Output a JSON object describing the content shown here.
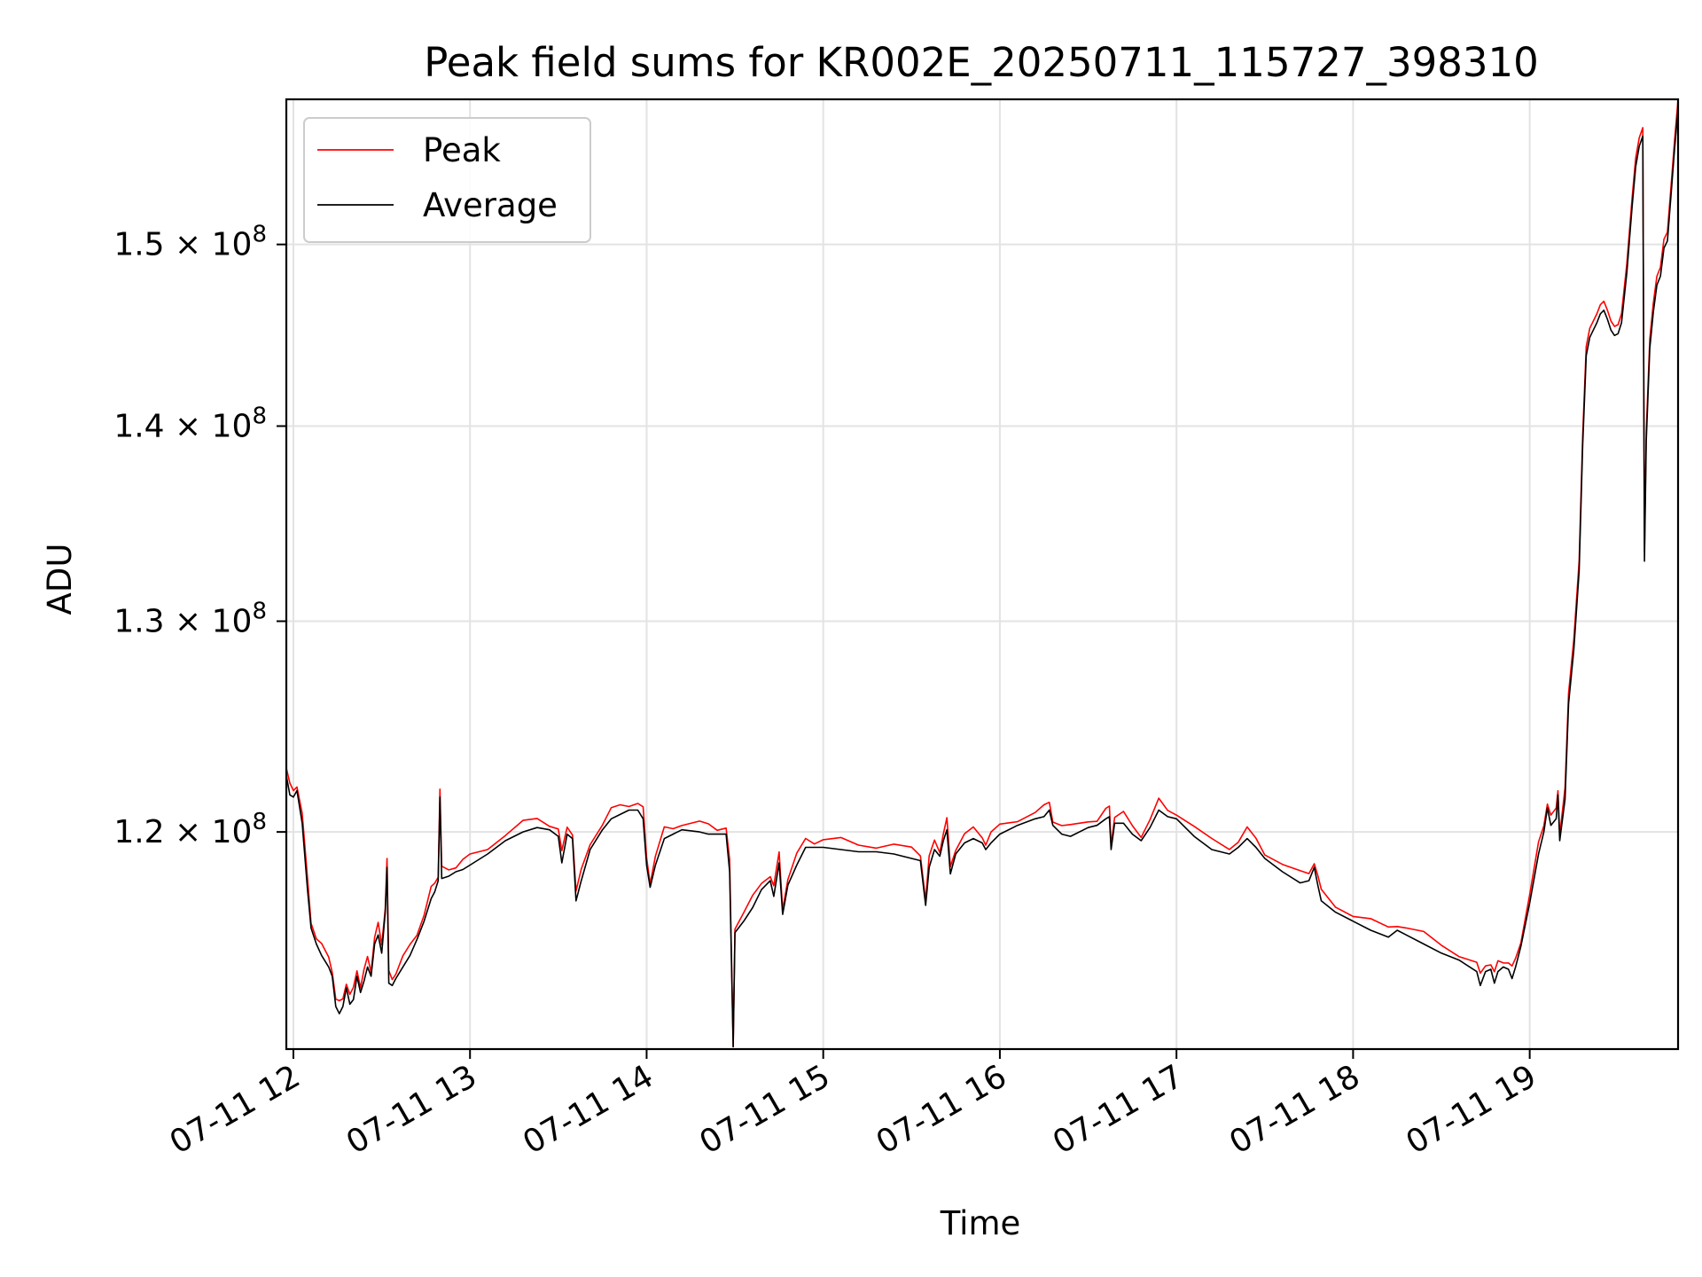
{
  "chart_data": {
    "type": "line",
    "title": "Peak field sums for KR002E_20250711_115727_398310",
    "xlabel": "Time",
    "ylabel": "ADU",
    "x_unit": "hours since 2025-07-11 00:00",
    "xlim": [
      11.96,
      19.84
    ],
    "ylim": [
      110.5,
      158.5
    ],
    "y_scale": "log",
    "y_value_unit": "1e6 ADU",
    "grid": true,
    "legend": {
      "position": "upper-left"
    },
    "x_ticks": [
      {
        "value": 12,
        "label": "07-11 12"
      },
      {
        "value": 13,
        "label": "07-11 13"
      },
      {
        "value": 14,
        "label": "07-11 14"
      },
      {
        "value": 15,
        "label": "07-11 15"
      },
      {
        "value": 16,
        "label": "07-11 16"
      },
      {
        "value": 17,
        "label": "07-11 17"
      },
      {
        "value": 18,
        "label": "07-11 18"
      },
      {
        "value": 19,
        "label": "07-11 19"
      }
    ],
    "y_ticks": [
      {
        "value": 120,
        "mantissa": "1.2",
        "base": "10",
        "exp": "8"
      },
      {
        "value": 130,
        "mantissa": "1.3",
        "base": "10",
        "exp": "8"
      },
      {
        "value": 140,
        "mantissa": "1.4",
        "base": "10",
        "exp": "8"
      },
      {
        "value": 150,
        "mantissa": "1.5",
        "base": "10",
        "exp": "8"
      }
    ],
    "series": [
      {
        "name": "Peak",
        "color": "#ff0000",
        "width": 1.6
      },
      {
        "name": "Average",
        "color": "#000000",
        "width": 1.6
      }
    ],
    "average": [
      [
        11.96,
        122.6
      ],
      [
        11.98,
        121.7
      ],
      [
        12.0,
        121.6
      ],
      [
        12.02,
        121.9
      ],
      [
        12.05,
        120.4
      ],
      [
        12.08,
        117.4
      ],
      [
        12.1,
        115.7
      ],
      [
        12.13,
        115.0
      ],
      [
        12.16,
        114.5
      ],
      [
        12.2,
        114.0
      ],
      [
        12.22,
        113.6
      ],
      [
        12.24,
        112.3
      ],
      [
        12.26,
        112.0
      ],
      [
        12.28,
        112.3
      ],
      [
        12.3,
        113.1
      ],
      [
        12.32,
        112.4
      ],
      [
        12.34,
        112.6
      ],
      [
        12.36,
        113.6
      ],
      [
        12.38,
        112.9
      ],
      [
        12.4,
        113.4
      ],
      [
        12.42,
        114.0
      ],
      [
        12.44,
        113.6
      ],
      [
        12.46,
        115.0
      ],
      [
        12.48,
        115.4
      ],
      [
        12.5,
        114.6
      ],
      [
        12.52,
        116.4
      ],
      [
        12.53,
        118.4
      ],
      [
        12.54,
        113.3
      ],
      [
        12.56,
        113.2
      ],
      [
        12.58,
        113.5
      ],
      [
        12.62,
        114.0
      ],
      [
        12.66,
        114.5
      ],
      [
        12.7,
        115.2
      ],
      [
        12.74,
        116.0
      ],
      [
        12.78,
        117.0
      ],
      [
        12.8,
        117.3
      ],
      [
        12.82,
        117.8
      ],
      [
        12.83,
        121.6
      ],
      [
        12.84,
        117.9
      ],
      [
        12.88,
        118.0
      ],
      [
        12.92,
        118.2
      ],
      [
        12.96,
        118.3
      ],
      [
        13.0,
        118.5
      ],
      [
        13.1,
        119.0
      ],
      [
        13.2,
        119.6
      ],
      [
        13.3,
        120.0
      ],
      [
        13.38,
        120.2
      ],
      [
        13.45,
        120.1
      ],
      [
        13.5,
        119.8
      ],
      [
        13.52,
        118.6
      ],
      [
        13.55,
        119.9
      ],
      [
        13.58,
        119.7
      ],
      [
        13.6,
        116.9
      ],
      [
        13.63,
        117.8
      ],
      [
        13.68,
        119.2
      ],
      [
        13.75,
        120.1
      ],
      [
        13.8,
        120.6
      ],
      [
        13.85,
        120.8
      ],
      [
        13.9,
        121.0
      ],
      [
        13.95,
        121.0
      ],
      [
        13.98,
        120.6
      ],
      [
        14.0,
        118.5
      ],
      [
        14.02,
        117.5
      ],
      [
        14.05,
        118.5
      ],
      [
        14.1,
        119.7
      ],
      [
        14.15,
        119.9
      ],
      [
        14.2,
        120.1
      ],
      [
        14.3,
        120.0
      ],
      [
        14.35,
        119.9
      ],
      [
        14.4,
        119.9
      ],
      [
        14.45,
        119.9
      ],
      [
        14.47,
        118.2
      ],
      [
        14.49,
        110.6
      ],
      [
        14.5,
        115.5
      ],
      [
        14.55,
        116.0
      ],
      [
        14.6,
        116.6
      ],
      [
        14.65,
        117.4
      ],
      [
        14.7,
        117.8
      ],
      [
        14.72,
        117.1
      ],
      [
        14.75,
        118.6
      ],
      [
        14.77,
        116.3
      ],
      [
        14.8,
        117.6
      ],
      [
        14.85,
        118.5
      ],
      [
        14.9,
        119.3
      ],
      [
        14.95,
        119.3
      ],
      [
        15.0,
        119.3
      ],
      [
        15.1,
        119.2
      ],
      [
        15.2,
        119.1
      ],
      [
        15.3,
        119.1
      ],
      [
        15.4,
        119.0
      ],
      [
        15.5,
        118.8
      ],
      [
        15.55,
        118.7
      ],
      [
        15.58,
        116.7
      ],
      [
        15.6,
        118.4
      ],
      [
        15.63,
        119.2
      ],
      [
        15.66,
        118.9
      ],
      [
        15.68,
        119.6
      ],
      [
        15.7,
        120.1
      ],
      [
        15.72,
        118.1
      ],
      [
        15.75,
        119.0
      ],
      [
        15.8,
        119.5
      ],
      [
        15.85,
        119.7
      ],
      [
        15.9,
        119.5
      ],
      [
        15.92,
        119.2
      ],
      [
        15.95,
        119.5
      ],
      [
        16.0,
        119.9
      ],
      [
        16.1,
        120.3
      ],
      [
        16.2,
        120.6
      ],
      [
        16.25,
        120.7
      ],
      [
        16.28,
        121.0
      ],
      [
        16.3,
        120.3
      ],
      [
        16.35,
        119.9
      ],
      [
        16.4,
        119.8
      ],
      [
        16.5,
        120.2
      ],
      [
        16.55,
        120.3
      ],
      [
        16.6,
        120.6
      ],
      [
        16.62,
        120.7
      ],
      [
        16.63,
        119.2
      ],
      [
        16.65,
        120.4
      ],
      [
        16.7,
        120.4
      ],
      [
        16.75,
        119.9
      ],
      [
        16.8,
        119.6
      ],
      [
        16.85,
        120.2
      ],
      [
        16.9,
        121.0
      ],
      [
        16.95,
        120.7
      ],
      [
        17.0,
        120.6
      ],
      [
        17.1,
        119.8
      ],
      [
        17.2,
        119.2
      ],
      [
        17.3,
        119.0
      ],
      [
        17.35,
        119.3
      ],
      [
        17.4,
        119.7
      ],
      [
        17.45,
        119.3
      ],
      [
        17.5,
        118.8
      ],
      [
        17.6,
        118.2
      ],
      [
        17.7,
        117.7
      ],
      [
        17.75,
        117.8
      ],
      [
        17.78,
        118.4
      ],
      [
        17.8,
        117.6
      ],
      [
        17.82,
        116.9
      ],
      [
        17.9,
        116.4
      ],
      [
        18.0,
        116.0
      ],
      [
        18.1,
        115.6
      ],
      [
        18.2,
        115.3
      ],
      [
        18.25,
        115.6
      ],
      [
        18.3,
        115.4
      ],
      [
        18.4,
        115.0
      ],
      [
        18.5,
        114.6
      ],
      [
        18.6,
        114.3
      ],
      [
        18.7,
        113.8
      ],
      [
        18.72,
        113.2
      ],
      [
        18.75,
        113.8
      ],
      [
        18.78,
        113.9
      ],
      [
        18.8,
        113.3
      ],
      [
        18.82,
        113.8
      ],
      [
        18.85,
        114.0
      ],
      [
        18.88,
        113.9
      ],
      [
        18.9,
        113.5
      ],
      [
        18.92,
        114.0
      ],
      [
        18.95,
        114.9
      ],
      [
        19.0,
        116.8
      ],
      [
        19.05,
        119.0
      ],
      [
        19.08,
        120.0
      ],
      [
        19.1,
        121.1
      ],
      [
        19.12,
        120.3
      ],
      [
        19.15,
        120.6
      ],
      [
        19.16,
        121.7
      ],
      [
        19.17,
        119.6
      ],
      [
        19.2,
        121.5
      ],
      [
        19.22,
        126.0
      ],
      [
        19.25,
        128.6
      ],
      [
        19.28,
        132.5
      ],
      [
        19.3,
        139.0
      ],
      [
        19.32,
        143.8
      ],
      [
        19.34,
        144.8
      ],
      [
        19.36,
        145.2
      ],
      [
        19.38,
        145.6
      ],
      [
        19.4,
        146.1
      ],
      [
        19.42,
        146.3
      ],
      [
        19.44,
        145.8
      ],
      [
        19.46,
        145.2
      ],
      [
        19.48,
        144.9
      ],
      [
        19.5,
        145.0
      ],
      [
        19.52,
        145.6
      ],
      [
        19.55,
        148.4
      ],
      [
        19.58,
        152.2
      ],
      [
        19.6,
        154.5
      ],
      [
        19.62,
        155.7
      ],
      [
        19.64,
        156.3
      ],
      [
        19.65,
        133.0
      ],
      [
        19.66,
        139.2
      ],
      [
        19.68,
        144.2
      ],
      [
        19.7,
        146.2
      ],
      [
        19.72,
        147.7
      ],
      [
        19.74,
        148.2
      ],
      [
        19.76,
        149.8
      ],
      [
        19.78,
        150.2
      ],
      [
        19.8,
        152.8
      ],
      [
        19.82,
        155.5
      ],
      [
        19.84,
        158.0
      ]
    ]
  }
}
